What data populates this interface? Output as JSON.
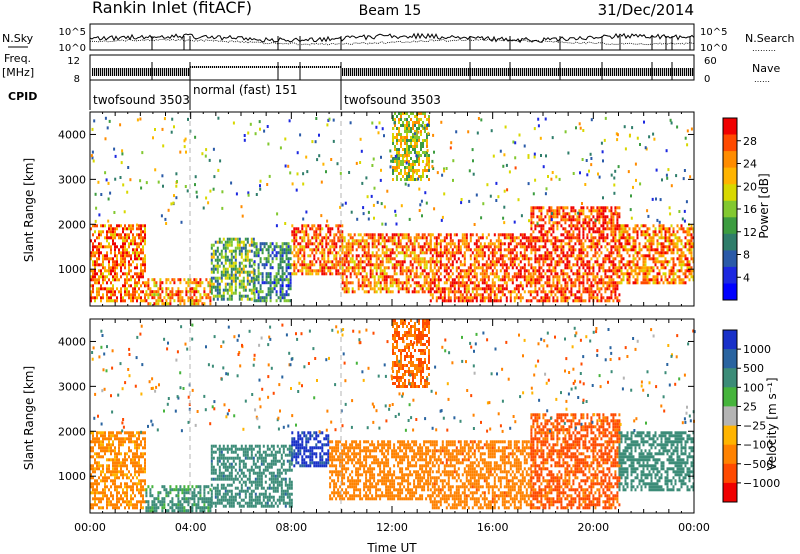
{
  "header": {
    "station": "Rankin Inlet (fitACF)",
    "beam": "Beam 15",
    "date": "31/Dec/2014"
  },
  "panel_labels": {
    "nsky": "N.Sky",
    "nsearch": "N.Search",
    "nsearch_dots": "………",
    "freq": "Freq.",
    "freq_unit": "[MHz]",
    "nave": "Nave",
    "nave_dots": "……",
    "cpid": "CPID"
  },
  "noise_axis": {
    "left_ticks": [
      "10^5",
      "10^0"
    ],
    "right_ticks": [
      "10^5",
      "10^0"
    ]
  },
  "freq_axis": {
    "left_ticks": [
      "12",
      "8"
    ],
    "right_ticks": [
      "60",
      "0"
    ]
  },
  "cpid_segments": [
    {
      "label": "twofsound 3503",
      "start_hour": 0.0,
      "end_hour": 4.0
    },
    {
      "label": "normal (fast) 151",
      "start_hour": 4.0,
      "end_hour": 10.0
    },
    {
      "label": "twofsound 3503",
      "start_hour": 10.0,
      "end_hour": 24.0
    }
  ],
  "chart_data": [
    {
      "type": "heatmap",
      "title": "",
      "xlabel": "",
      "ylabel": "Slant Range [km]",
      "xlim": [
        0,
        24
      ],
      "ylim": [
        180,
        4500
      ],
      "y_ticks": [
        1000,
        2000,
        3000,
        4000
      ],
      "colorbar": {
        "label": "Power [dB]",
        "ticks": [
          "28",
          "24",
          "20",
          "16",
          "12",
          "8",
          "4"
        ],
        "colors": [
          "#f00000",
          "#ff4a00",
          "#ff8c00",
          "#ffb400",
          "#d8d800",
          "#82c830",
          "#3c9c40",
          "#2f7d6a",
          "#2a5aa8",
          "#1c28e0",
          "#0000ff"
        ]
      },
      "echo_regions": [
        {
          "start_hour": 0.0,
          "end_hour": 2.2,
          "range_min": 300,
          "range_max": 2000,
          "power_db": 26
        },
        {
          "start_hour": 2.2,
          "end_hour": 4.8,
          "range_min": 200,
          "range_max": 800,
          "power_db": 24
        },
        {
          "start_hour": 4.8,
          "end_hour": 6.5,
          "range_min": 300,
          "range_max": 1700,
          "power_db": 14
        },
        {
          "start_hour": 6.5,
          "end_hour": 8.0,
          "range_min": 300,
          "range_max": 1600,
          "power_db": 10
        },
        {
          "start_hour": 8.0,
          "end_hour": 10.0,
          "range_min": 900,
          "range_max": 2000,
          "power_db": 26
        },
        {
          "start_hour": 10.0,
          "end_hour": 13.5,
          "range_min": 500,
          "range_max": 1800,
          "power_db": 25
        },
        {
          "start_hour": 12.0,
          "end_hour": 13.5,
          "range_min": 3000,
          "range_max": 4500,
          "power_db": 18
        },
        {
          "start_hour": 13.5,
          "end_hour": 17.5,
          "range_min": 300,
          "range_max": 1800,
          "power_db": 27
        },
        {
          "start_hour": 17.5,
          "end_hour": 21.0,
          "range_min": 300,
          "range_max": 2400,
          "power_db": 28
        },
        {
          "start_hour": 21.0,
          "end_hour": 24.0,
          "range_min": 700,
          "range_max": 2000,
          "power_db": 25
        }
      ]
    },
    {
      "type": "heatmap",
      "title": "",
      "xlabel": "Time UT",
      "ylabel": "Slant Range [km]",
      "xlim": [
        0,
        24
      ],
      "ylim": [
        180,
        4500
      ],
      "x_ticks": [
        "00:00",
        "04:00",
        "08:00",
        "12:00",
        "16:00",
        "20:00",
        "00:00"
      ],
      "y_ticks": [
        1000,
        2000,
        3000,
        4000
      ],
      "colorbar": {
        "label": "Velocity [m s⁻¹]",
        "ticks": [
          "1000",
          "500",
          "100",
          "25",
          "−25",
          "−100",
          "−500",
          "−1000"
        ],
        "colors": [
          "#1830c8",
          "#2a64a0",
          "#3c8c78",
          "#46b43c",
          "#b4b4b4",
          "#ffb400",
          "#ff8200",
          "#ff4a00",
          "#f00000"
        ]
      },
      "echo_regions": [
        {
          "start_hour": 0.0,
          "end_hour": 2.2,
          "range_min": 300,
          "range_max": 2000,
          "velocity_ms": -100
        },
        {
          "start_hour": 2.2,
          "end_hour": 4.8,
          "range_min": 200,
          "range_max": 800,
          "velocity_ms": 100
        },
        {
          "start_hour": 4.8,
          "end_hour": 8.0,
          "range_min": 300,
          "range_max": 1700,
          "velocity_ms": 200
        },
        {
          "start_hour": 8.0,
          "end_hour": 9.5,
          "range_min": 1200,
          "range_max": 2000,
          "velocity_ms": 1000
        },
        {
          "start_hour": 9.5,
          "end_hour": 13.5,
          "range_min": 500,
          "range_max": 1800,
          "velocity_ms": -150
        },
        {
          "start_hour": 12.0,
          "end_hour": 13.5,
          "range_min": 3000,
          "range_max": 4500,
          "velocity_ms": -300
        },
        {
          "start_hour": 13.5,
          "end_hour": 17.5,
          "range_min": 300,
          "range_max": 1800,
          "velocity_ms": -200
        },
        {
          "start_hour": 17.5,
          "end_hour": 21.0,
          "range_min": 300,
          "range_max": 2400,
          "velocity_ms": -400
        },
        {
          "start_hour": 21.0,
          "end_hour": 24.0,
          "range_min": 700,
          "range_max": 2000,
          "velocity_ms": 150
        }
      ]
    }
  ]
}
